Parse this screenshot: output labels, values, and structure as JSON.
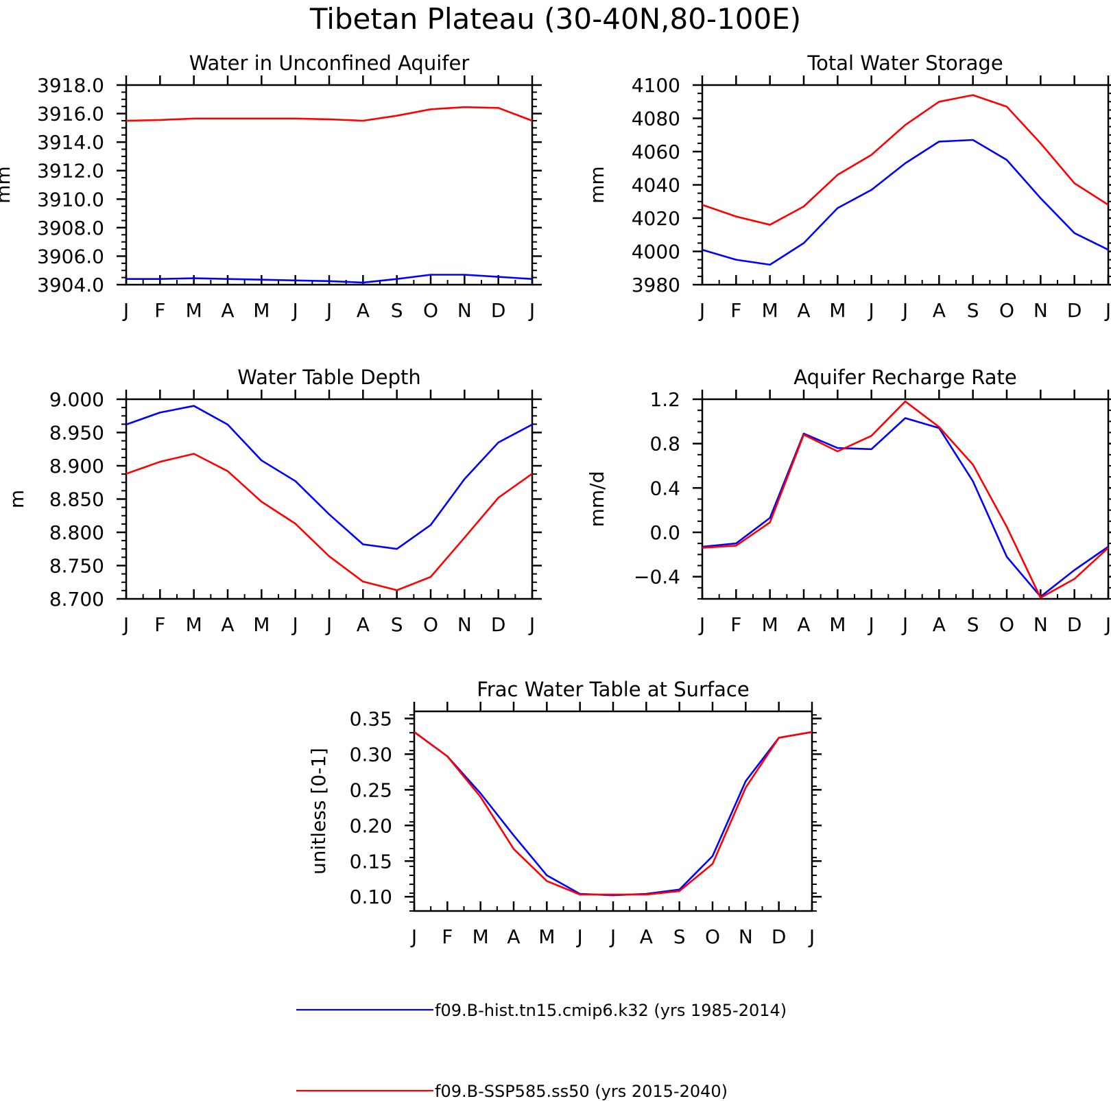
{
  "figure_title": "Tibetan Plateau (30-40N,80-100E)",
  "legend": [
    {
      "label": "f09.B-hist.tn15.cmip6.k32 (yrs 1985-2014)",
      "color": "#0000ff"
    },
    {
      "label": "f09.B-SSP585.ss50 (yrs 2015-2040)",
      "color": "#ff0000"
    }
  ],
  "chart_data": [
    {
      "type": "line",
      "title": "Water in Unconfined Aquifer",
      "ylabel": "mm",
      "categories": [
        "J",
        "F",
        "M",
        "A",
        "M",
        "J",
        "J",
        "A",
        "S",
        "O",
        "N",
        "D",
        "J"
      ],
      "ylim": [
        3904.0,
        3918.0
      ],
      "yticks": [
        3904.0,
        3906.0,
        3908.0,
        3910.0,
        3912.0,
        3914.0,
        3916.0,
        3918.0
      ],
      "ytick_labels": [
        "3904.0",
        "3906.0",
        "3908.0",
        "3910.0",
        "3912.0",
        "3914.0",
        "3916.0",
        "3918.0"
      ],
      "series": [
        {
          "color": "#0000ff",
          "values": [
            3904.4,
            3904.4,
            3904.45,
            3904.4,
            3904.35,
            3904.3,
            3904.25,
            3904.15,
            3904.4,
            3904.7,
            3904.7,
            3904.55,
            3904.4
          ]
        },
        {
          "color": "#ff0000",
          "values": [
            3915.5,
            3915.55,
            3915.65,
            3915.65,
            3915.65,
            3915.65,
            3915.6,
            3915.5,
            3915.85,
            3916.3,
            3916.45,
            3916.4,
            3915.5
          ]
        }
      ]
    },
    {
      "type": "line",
      "title": "Total Water Storage",
      "ylabel": "mm",
      "categories": [
        "J",
        "F",
        "M",
        "A",
        "M",
        "J",
        "J",
        "A",
        "S",
        "O",
        "N",
        "D",
        "J"
      ],
      "ylim": [
        3980,
        4100
      ],
      "yticks": [
        3980,
        4000,
        4020,
        4040,
        4060,
        4080,
        4100
      ],
      "ytick_labels": [
        "3980",
        "4000",
        "4020",
        "4040",
        "4060",
        "4080",
        "4100"
      ],
      "series": [
        {
          "color": "#0000ff",
          "values": [
            4001,
            3995,
            3992,
            4005,
            4026,
            4037,
            4053,
            4066,
            4067,
            4055,
            4032,
            4011,
            4001
          ]
        },
        {
          "color": "#ff0000",
          "values": [
            4028,
            4021,
            4016,
            4027,
            4046,
            4058,
            4076,
            4090,
            4094,
            4087,
            4065,
            4041,
            4028
          ]
        }
      ]
    },
    {
      "type": "line",
      "title": "Water Table Depth",
      "ylabel": "m",
      "categories": [
        "J",
        "F",
        "M",
        "A",
        "M",
        "J",
        "J",
        "A",
        "S",
        "O",
        "N",
        "D",
        "J"
      ],
      "ylim": [
        8.7,
        9.0
      ],
      "yticks": [
        8.7,
        8.75,
        8.8,
        8.85,
        8.9,
        8.95,
        9.0
      ],
      "ytick_labels": [
        "8.700",
        "8.750",
        "8.800",
        "8.850",
        "8.900",
        "8.950",
        "9.000"
      ],
      "series": [
        {
          "color": "#0000ff",
          "values": [
            8.962,
            8.98,
            8.99,
            8.962,
            8.908,
            8.877,
            8.827,
            8.782,
            8.775,
            8.811,
            8.88,
            8.935,
            8.962
          ]
        },
        {
          "color": "#ff0000",
          "values": [
            8.888,
            8.906,
            8.918,
            8.892,
            8.846,
            8.813,
            8.764,
            8.726,
            8.713,
            8.733,
            8.792,
            8.852,
            8.888
          ]
        }
      ]
    },
    {
      "type": "line",
      "title": "Aquifer Recharge Rate",
      "ylabel": "mm/d",
      "categories": [
        "J",
        "F",
        "M",
        "A",
        "M",
        "J",
        "J",
        "A",
        "S",
        "O",
        "N",
        "D",
        "J"
      ],
      "ylim": [
        -0.6,
        1.2
      ],
      "yticks": [
        -0.4,
        0.0,
        0.4,
        0.8,
        1.2
      ],
      "ytick_labels": [
        "−0.4",
        "0.0",
        "0.4",
        "0.8",
        "1.2"
      ],
      "series": [
        {
          "color": "#0000ff",
          "values": [
            -0.13,
            -0.1,
            0.13,
            0.89,
            0.76,
            0.75,
            1.03,
            0.94,
            0.46,
            -0.22,
            -0.58,
            -0.34,
            -0.13
          ]
        },
        {
          "color": "#ff0000",
          "values": [
            -0.14,
            -0.12,
            0.09,
            0.88,
            0.73,
            0.87,
            1.18,
            0.95,
            0.61,
            0.05,
            -0.59,
            -0.42,
            -0.14
          ]
        }
      ]
    },
    {
      "type": "line",
      "title": "Frac Water Table at Surface",
      "ylabel": "unitless [0-1]",
      "categories": [
        "J",
        "F",
        "M",
        "A",
        "M",
        "J",
        "J",
        "A",
        "S",
        "O",
        "N",
        "D",
        "J"
      ],
      "ylim": [
        0.08,
        0.36
      ],
      "yticks": [
        0.1,
        0.15,
        0.2,
        0.25,
        0.3,
        0.35
      ],
      "ytick_labels": [
        "0.10",
        "0.15",
        "0.20",
        "0.25",
        "0.30",
        "0.35"
      ],
      "series": [
        {
          "color": "#0000ff",
          "values": [
            0.331,
            0.297,
            0.245,
            0.186,
            0.13,
            0.104,
            0.102,
            0.104,
            0.11,
            0.157,
            0.262,
            0.323,
            0.331
          ]
        },
        {
          "color": "#ff0000",
          "values": [
            0.331,
            0.297,
            0.24,
            0.167,
            0.122,
            0.103,
            0.103,
            0.103,
            0.108,
            0.146,
            0.253,
            0.323,
            0.331
          ]
        }
      ]
    }
  ]
}
